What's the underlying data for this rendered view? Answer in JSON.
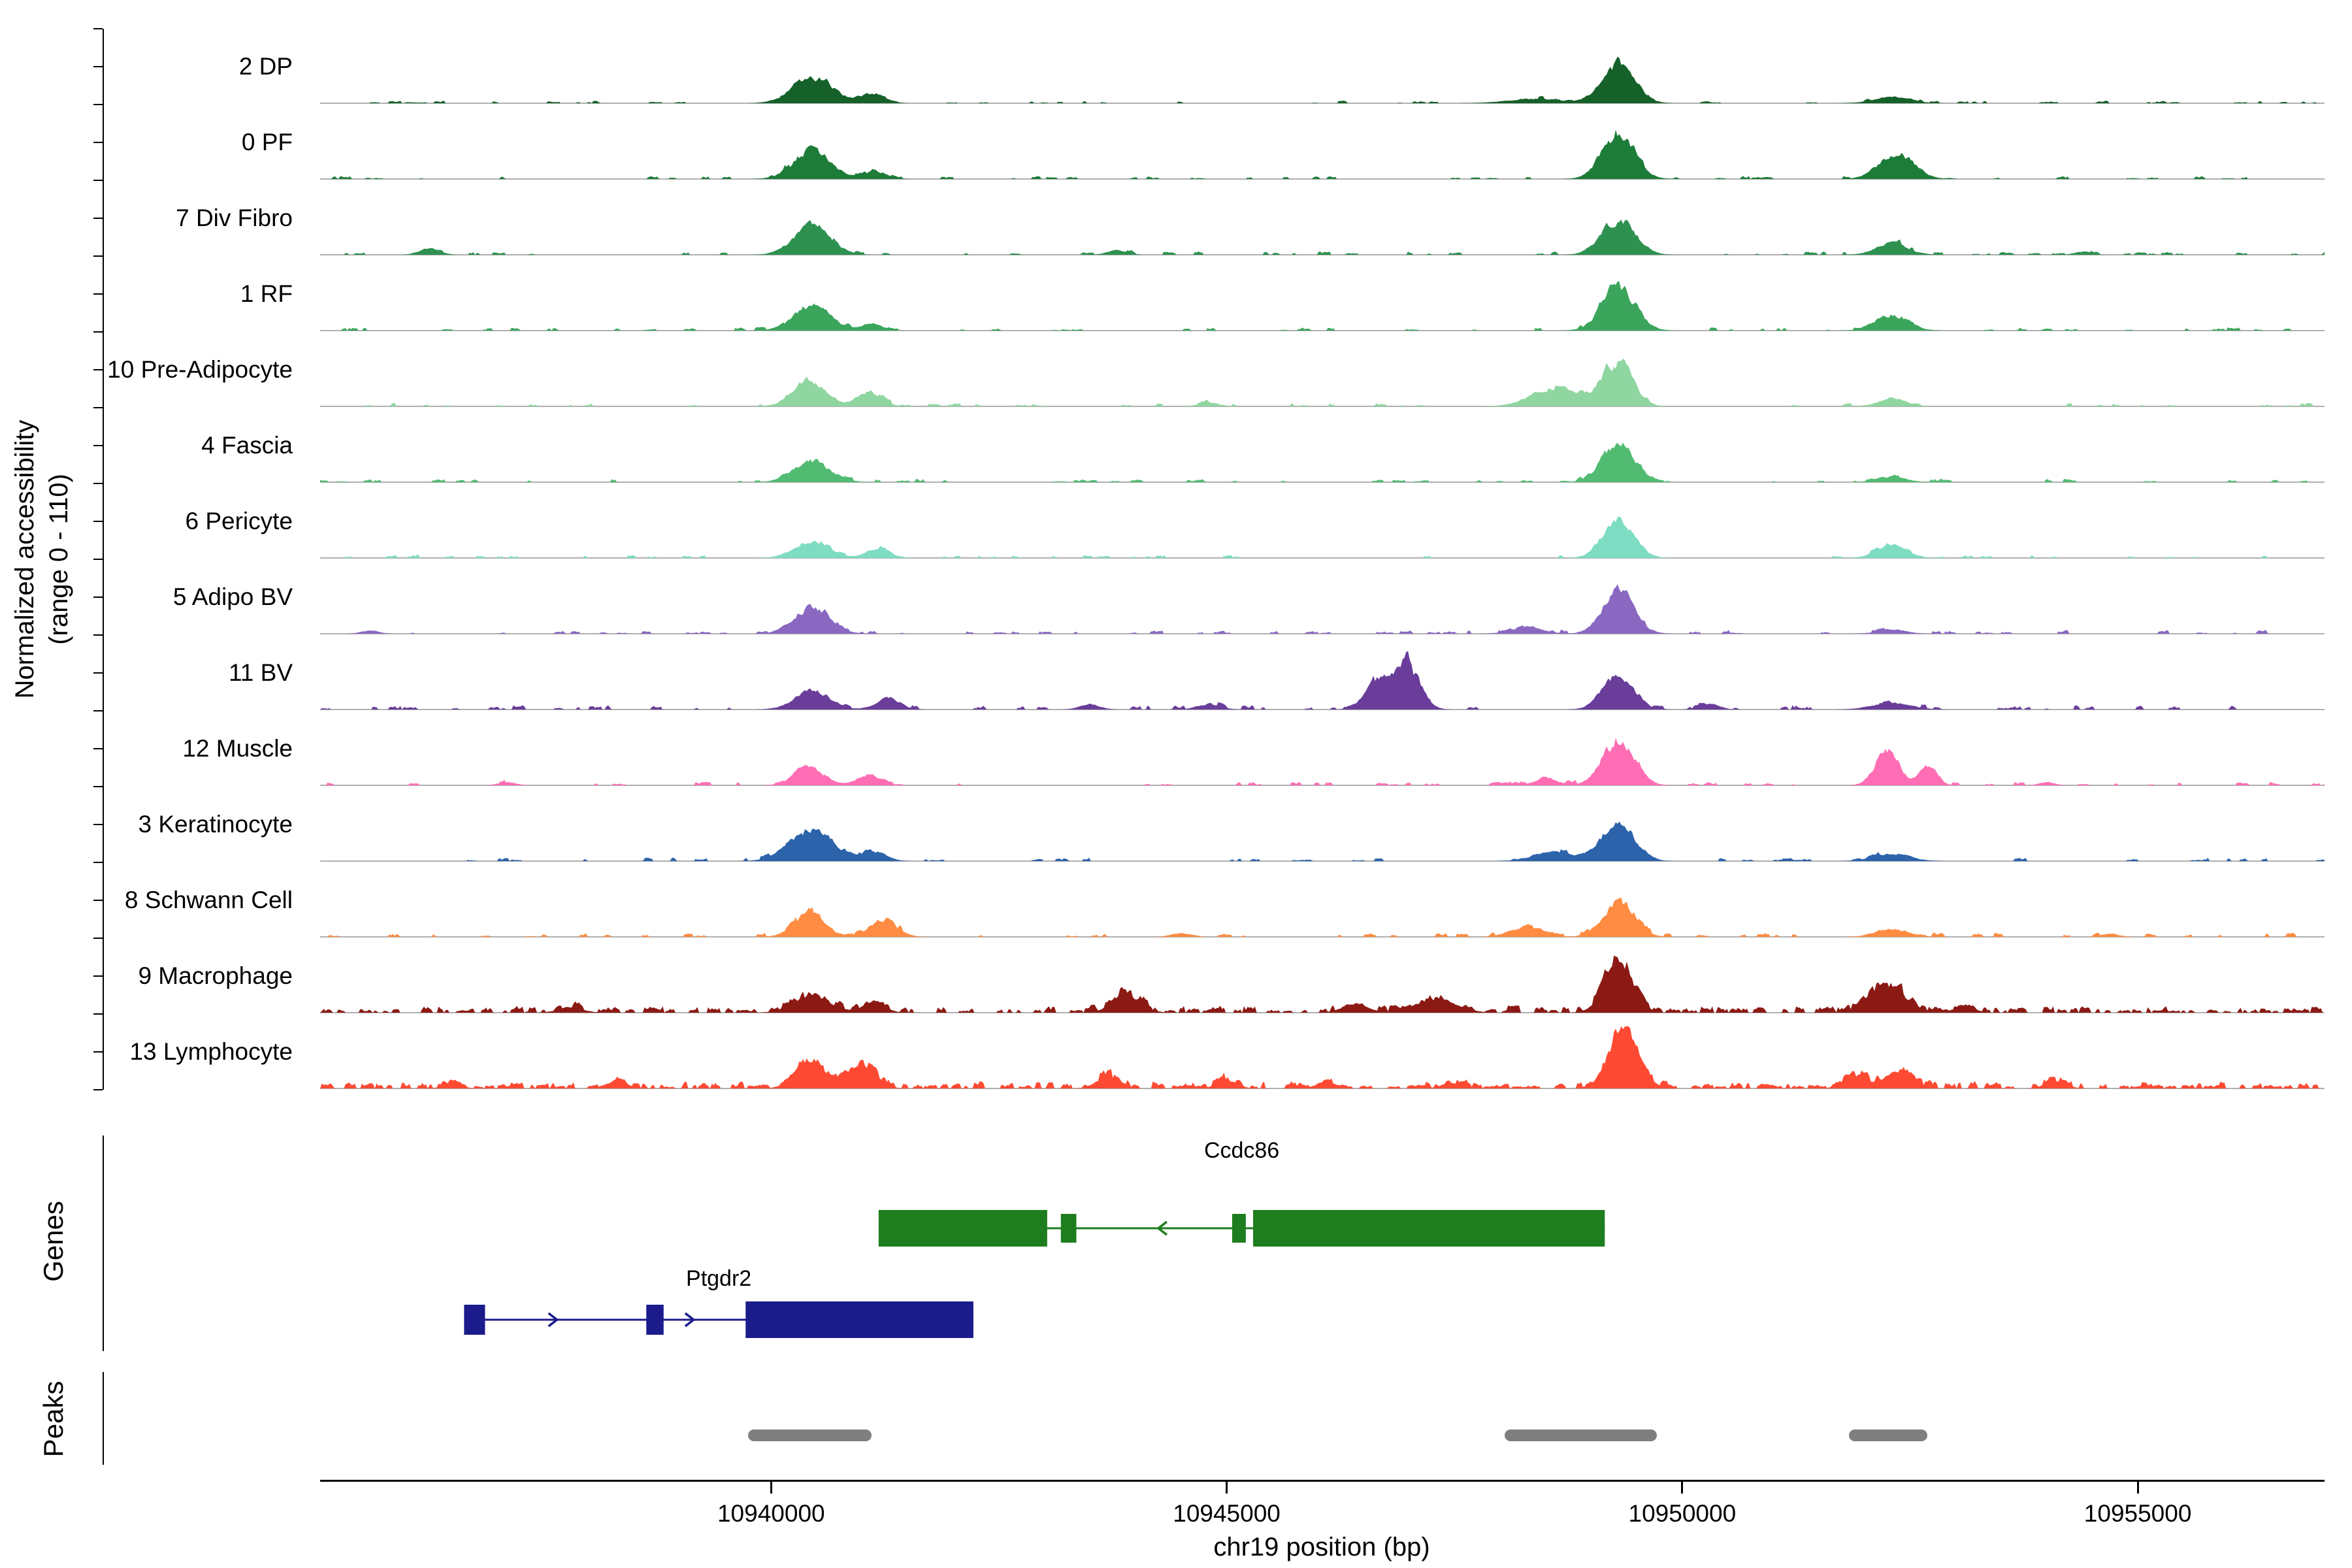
{
  "figure": {
    "y_axis_label_line1": "Normalized accessibility",
    "y_axis_label_line2": "(range 0 - 110)",
    "genes_section_label": "Genes",
    "peaks_section_label": "Peaks",
    "x_axis_title": "chr19 position (bp)"
  },
  "chart_data": {
    "type": "area",
    "title": "",
    "x_axis": {
      "label": "chr19 position (bp)",
      "range_bp": [
        10935050,
        10957050
      ],
      "ticks": [
        10940000,
        10945000,
        10950000,
        10955000
      ],
      "tick_labels": [
        "10940000",
        "10945000",
        "10950000",
        "10955000"
      ]
    },
    "y_axis": {
      "label": "Normalized accessibility (range 0 - 110)",
      "per_track_range": [
        0,
        110
      ]
    },
    "baseline_color": "#b0b0b0",
    "tracks": [
      {
        "label": "2 DP",
        "color": "#156129",
        "noise": 0.035,
        "peaks": [
          [
            10940450,
            500,
            0.42
          ],
          [
            10941100,
            320,
            0.14
          ],
          [
            10948400,
            700,
            0.07
          ],
          [
            10949300,
            420,
            0.62
          ],
          [
            10952300,
            480,
            0.1
          ]
        ]
      },
      {
        "label": "0 PF",
        "color": "#1d7c38",
        "noise": 0.04,
        "peaks": [
          [
            10940450,
            480,
            0.45
          ],
          [
            10941150,
            300,
            0.12
          ],
          [
            10949300,
            420,
            0.72
          ],
          [
            10952350,
            450,
            0.4
          ]
        ]
      },
      {
        "label": "7 Div Fibro",
        "color": "#2e9150",
        "noise": 0.05,
        "peaks": [
          [
            10936250,
            260,
            0.1
          ],
          [
            10940450,
            470,
            0.45
          ],
          [
            10943800,
            260,
            0.07
          ],
          [
            10949300,
            430,
            0.55
          ],
          [
            10952300,
            420,
            0.17
          ],
          [
            10954400,
            220,
            0.05
          ]
        ]
      },
      {
        "label": "1 RF",
        "color": "#3ba55c",
        "noise": 0.045,
        "peaks": [
          [
            10940450,
            470,
            0.4
          ],
          [
            10941100,
            300,
            0.1
          ],
          [
            10949300,
            430,
            0.66
          ],
          [
            10952300,
            420,
            0.25
          ]
        ]
      },
      {
        "label": "10 Pre-Adipocyte",
        "color": "#8fd6a0",
        "noise": 0.05,
        "peaks": [
          [
            10940420,
            420,
            0.42
          ],
          [
            10941080,
            320,
            0.22
          ],
          [
            10944800,
            260,
            0.06
          ],
          [
            10948650,
            650,
            0.3
          ],
          [
            10949300,
            380,
            0.68
          ],
          [
            10952300,
            360,
            0.12
          ]
        ]
      },
      {
        "label": "4 Fascia",
        "color": "#52bb72",
        "noise": 0.045,
        "peaks": [
          [
            10940450,
            470,
            0.33
          ],
          [
            10949300,
            420,
            0.62
          ],
          [
            10952300,
            360,
            0.09
          ]
        ]
      },
      {
        "label": "6 Pericyte",
        "color": "#7edcc2",
        "noise": 0.045,
        "peaks": [
          [
            10940450,
            450,
            0.27
          ],
          [
            10941180,
            300,
            0.15
          ],
          [
            10949300,
            400,
            0.58
          ],
          [
            10952300,
            380,
            0.21
          ]
        ]
      },
      {
        "label": "5 Adipo BV",
        "color": "#8a68c2",
        "noise": 0.05,
        "peaks": [
          [
            10935600,
            220,
            0.05
          ],
          [
            10940450,
            450,
            0.42
          ],
          [
            10948300,
            420,
            0.1
          ],
          [
            10949300,
            400,
            0.68
          ],
          [
            10952300,
            360,
            0.07
          ]
        ]
      },
      {
        "label": "11 BV",
        "color": "#6a3d9a",
        "noise": 0.06,
        "peaks": [
          [
            10940450,
            450,
            0.3
          ],
          [
            10941280,
            320,
            0.17
          ],
          [
            10943500,
            260,
            0.08
          ],
          [
            10944800,
            300,
            0.08
          ],
          [
            10946650,
            320,
            0.42
          ],
          [
            10946980,
            330,
            0.72
          ],
          [
            10949300,
            400,
            0.55
          ],
          [
            10950300,
            260,
            0.08
          ],
          [
            10952300,
            500,
            0.1
          ]
        ]
      },
      {
        "label": "12 Muscle",
        "color": "#ff6eb4",
        "noise": 0.055,
        "peaks": [
          [
            10937100,
            220,
            0.05
          ],
          [
            10940420,
            380,
            0.3
          ],
          [
            10941080,
            300,
            0.17
          ],
          [
            10948500,
            320,
            0.1
          ],
          [
            10949300,
            400,
            0.72
          ],
          [
            10952250,
            300,
            0.58
          ],
          [
            10952700,
            230,
            0.3
          ],
          [
            10954000,
            200,
            0.05
          ]
        ]
      },
      {
        "label": "3 Keratinocyte",
        "color": "#2d63ab",
        "noise": 0.05,
        "peaks": [
          [
            10940450,
            560,
            0.5
          ],
          [
            10941150,
            300,
            0.14
          ],
          [
            10948600,
            520,
            0.14
          ],
          [
            10949300,
            420,
            0.62
          ],
          [
            10952300,
            460,
            0.12
          ]
        ]
      },
      {
        "label": "8 Schwann Cell",
        "color": "#ff8c42",
        "noise": 0.055,
        "peaks": [
          [
            10940420,
            400,
            0.36
          ],
          [
            10941220,
            360,
            0.26
          ],
          [
            10944500,
            260,
            0.06
          ],
          [
            10948300,
            420,
            0.17
          ],
          [
            10949300,
            400,
            0.57
          ],
          [
            10952300,
            420,
            0.13
          ],
          [
            10954700,
            220,
            0.05
          ]
        ]
      },
      {
        "label": "9 Macrophage",
        "color": "#8c1a14",
        "noise": 0.1,
        "peaks": [
          [
            10937800,
            320,
            0.08
          ],
          [
            10940450,
            450,
            0.28
          ],
          [
            10941120,
            300,
            0.14
          ],
          [
            10943900,
            360,
            0.3
          ],
          [
            10946400,
            320,
            0.14
          ],
          [
            10947300,
            520,
            0.2
          ],
          [
            10949300,
            360,
            0.85
          ],
          [
            10952250,
            460,
            0.45
          ],
          [
            10953100,
            260,
            0.1
          ]
        ]
      },
      {
        "label": "13 Lymphocyte",
        "color": "#ff4a33",
        "noise": 0.1,
        "peaks": [
          [
            10936500,
            220,
            0.09
          ],
          [
            10938300,
            260,
            0.13
          ],
          [
            10940420,
            360,
            0.46
          ],
          [
            10940980,
            360,
            0.4
          ],
          [
            10943700,
            300,
            0.18
          ],
          [
            10945000,
            260,
            0.13
          ],
          [
            10946100,
            260,
            0.11
          ],
          [
            10947500,
            300,
            0.09
          ],
          [
            10949350,
            380,
            0.93
          ],
          [
            10951900,
            300,
            0.2
          ],
          [
            10952380,
            360,
            0.26
          ],
          [
            10954100,
            260,
            0.11
          ]
        ]
      }
    ],
    "genes": [
      {
        "name": "Ccdc86",
        "color": "#1e7d1e",
        "strand": "-",
        "start": 10941180,
        "end": 10949150,
        "exons": [
          [
            10941180,
            10943030,
            56
          ],
          [
            10943180,
            10943350,
            44
          ],
          [
            10945060,
            10945210,
            44
          ],
          [
            10945290,
            10949150,
            56
          ]
        ],
        "arrows": [
          10944250
        ]
      },
      {
        "name": "Ptgdr2",
        "color": "#1b1b8c",
        "strand": "+",
        "start": 10936630,
        "end": 10942220,
        "exons": [
          [
            10936630,
            10936860,
            46
          ],
          [
            10938630,
            10938820,
            46
          ],
          [
            10939720,
            10942220,
            56
          ]
        ],
        "arrows": [
          10937650,
          10939150
        ]
      }
    ],
    "peaks_track": {
      "color": "#7f7f7f",
      "intervals": [
        [
          10939750,
          10941100
        ],
        [
          10948050,
          10949720
        ],
        [
          10951830,
          10952690
        ]
      ]
    }
  }
}
